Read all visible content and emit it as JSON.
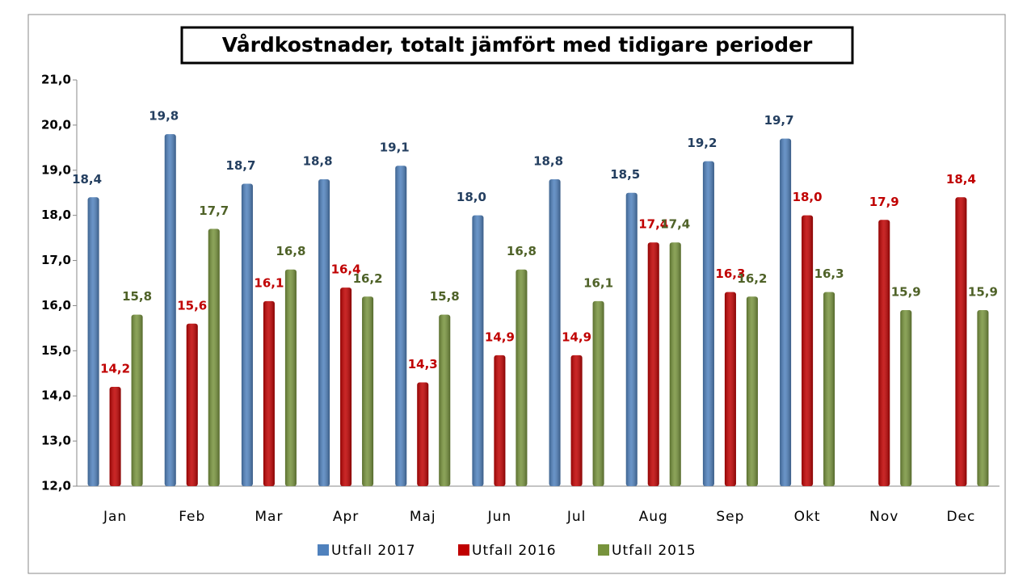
{
  "chart_data": {
    "type": "bar",
    "title": "Vårdkostnader, totalt jämfört med tidigare perioder",
    "categories": [
      "Jan",
      "Feb",
      "Mar",
      "Apr",
      "Maj",
      "Jun",
      "Jul",
      "Aug",
      "Sep",
      "Okt",
      "Nov",
      "Dec"
    ],
    "series": [
      {
        "name": "Utfall 2017",
        "color": "#4f81bd",
        "label_color": "#243f60",
        "values": [
          18.4,
          19.8,
          18.7,
          18.8,
          19.1,
          18.0,
          18.8,
          18.5,
          19.2,
          19.7,
          null,
          null
        ],
        "value_labels": [
          "18,4",
          "19,8",
          "18,7",
          "18,8",
          "19,1",
          "18,0",
          "18,8",
          "18,5",
          "19,2",
          "19,7",
          null,
          null
        ]
      },
      {
        "name": "Utfall 2016",
        "color": "#c00000",
        "label_color": "#c00000",
        "values": [
          14.2,
          15.6,
          16.1,
          16.4,
          14.3,
          14.9,
          14.9,
          17.4,
          16.3,
          18.0,
          17.9,
          18.4
        ],
        "value_labels": [
          "14,2",
          "15,6",
          "16,1",
          "16,4",
          "14,3",
          "14,9",
          "14,9",
          "17,4",
          "16,3",
          "18,0",
          "17,9",
          "18,4"
        ]
      },
      {
        "name": "Utfall 2015",
        "color": "#77933c",
        "label_color": "#4f6228",
        "values": [
          15.8,
          17.7,
          16.8,
          16.2,
          15.8,
          16.8,
          16.1,
          17.4,
          16.2,
          16.3,
          15.9,
          15.9
        ],
        "value_labels": [
          "15,8",
          "17,7",
          "16,8",
          "16,2",
          "15,8",
          "16,8",
          "16,1",
          "17,4",
          "16,2",
          "16,3",
          "15,9",
          "15,9"
        ]
      }
    ],
    "ylim": [
      12,
      21
    ],
    "yticks": [
      {
        "value": 12,
        "label": "12,0"
      },
      {
        "value": 13,
        "label": "13,0"
      },
      {
        "value": 14,
        "label": "14,0"
      },
      {
        "value": 15,
        "label": "15,0"
      },
      {
        "value": 16,
        "label": "16,0"
      },
      {
        "value": 17,
        "label": "17,0"
      },
      {
        "value": 18,
        "label": "18,0"
      },
      {
        "value": 19,
        "label": "19,0"
      },
      {
        "value": 20,
        "label": "20,0"
      },
      {
        "value": 21,
        "label": "21,0"
      }
    ],
    "legend": "bottom"
  }
}
